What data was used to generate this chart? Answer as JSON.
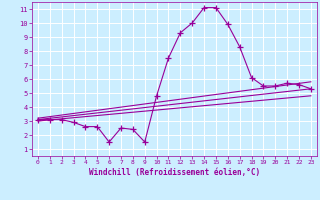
{
  "xlabel": "Windchill (Refroidissement éolien,°C)",
  "bg_color": "#cceeff",
  "line_color": "#990099",
  "grid_color": "#ffffff",
  "xlim": [
    -0.5,
    23.5
  ],
  "ylim": [
    0.5,
    11.5
  ],
  "xticks": [
    0,
    1,
    2,
    3,
    4,
    5,
    6,
    7,
    8,
    9,
    10,
    11,
    12,
    13,
    14,
    15,
    16,
    17,
    18,
    19,
    20,
    21,
    22,
    23
  ],
  "yticks": [
    1,
    2,
    3,
    4,
    5,
    6,
    7,
    8,
    9,
    10,
    11
  ],
  "series1_x": [
    0,
    1,
    2,
    3,
    4,
    5,
    6,
    7,
    8,
    9,
    10,
    11,
    12,
    13,
    14,
    15,
    16,
    17,
    18,
    19,
    20,
    21,
    22,
    23
  ],
  "series1_y": [
    3.1,
    3.1,
    3.1,
    2.9,
    2.6,
    2.6,
    1.5,
    2.5,
    2.4,
    1.5,
    4.8,
    7.5,
    9.3,
    10.0,
    11.1,
    11.1,
    9.9,
    8.3,
    6.1,
    5.5,
    5.5,
    5.7,
    5.6,
    5.3
  ],
  "series2_x": [
    0,
    23
  ],
  "series2_y": [
    3.1,
    5.3
  ],
  "series3_x": [
    0,
    23
  ],
  "series3_y": [
    3.0,
    4.8
  ],
  "series4_x": [
    0,
    23
  ],
  "series4_y": [
    3.2,
    5.8
  ]
}
